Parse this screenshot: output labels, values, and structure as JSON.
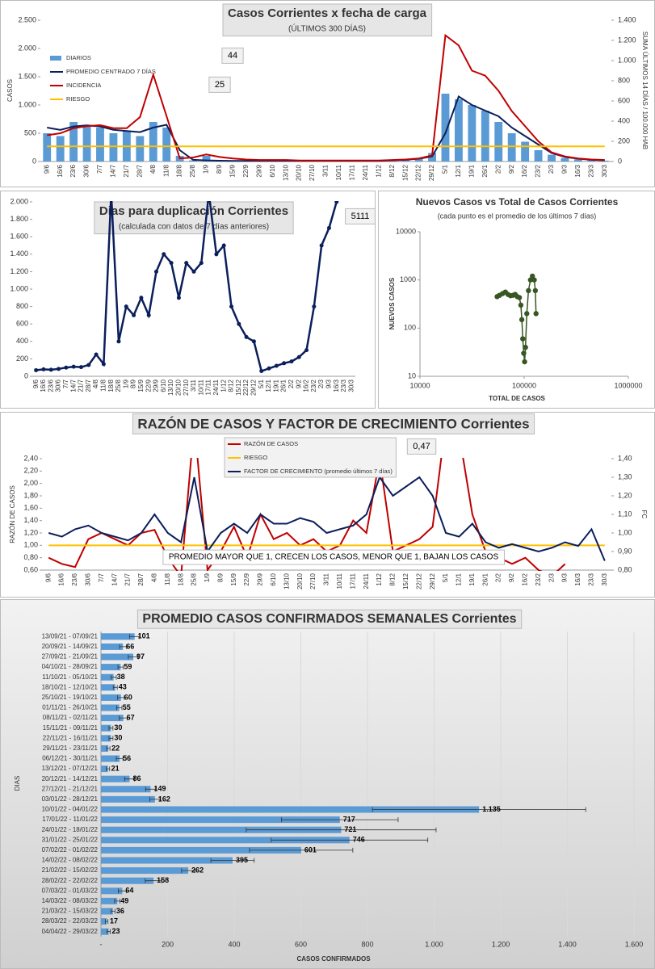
{
  "chart_data": [
    {
      "type": "combo",
      "title": "Casos Corrientes x fecha de carga",
      "subtitle": "(ÚLTIMOS 300 DÍAS)",
      "y_label": "CASOS",
      "y2_label": "SUMA ÚLTIMOS 14 DÍAS / 100.000 HAB",
      "annotations": [
        "44",
        "25"
      ],
      "categories": [
        "9/6",
        "16/6",
        "23/6",
        "30/6",
        "7/7",
        "14/7",
        "21/7",
        "28/7",
        "4/8",
        "11/8",
        "18/8",
        "25/8",
        "1/9",
        "8/9",
        "15/9",
        "22/9",
        "29/9",
        "6/10",
        "13/10",
        "20/10",
        "27/10",
        "3/11",
        "10/11",
        "17/11",
        "24/11",
        "1/12",
        "8/12",
        "15/12",
        "22/12",
        "29/12",
        "5/1",
        "12/1",
        "19/1",
        "26/1",
        "2/2",
        "9/2",
        "16/2",
        "23/2",
        "2/3",
        "9/3",
        "16/3",
        "23/3",
        "30/3"
      ],
      "ylim": [
        0,
        2500
      ],
      "yticks": [
        0,
        500,
        {
          "value": 1000,
          "label": "1.000"
        },
        {
          "value": 1500,
          "label": "1.500"
        },
        {
          "value": 2000,
          "label": "2.000"
        },
        {
          "value": 2500,
          "label": "2.500"
        }
      ],
      "y2lim": [
        0,
        1400
      ],
      "y2ticks": [
        0,
        200,
        400,
        600,
        800,
        {
          "value": 1000,
          "label": "1.000"
        },
        {
          "value": 1200,
          "label": "1.200"
        },
        {
          "value": 1400,
          "label": "1.400"
        }
      ],
      "series": [
        {
          "name": "DIARIOS",
          "type": "bar",
          "color": "#5b9bd5",
          "values": [
            500,
            450,
            700,
            650,
            600,
            500,
            550,
            450,
            700,
            600,
            100,
            20,
            100,
            15,
            10,
            10,
            15,
            8,
            10,
            8,
            10,
            10,
            10,
            12,
            10,
            15,
            20,
            30,
            60,
            150,
            1200,
            1100,
            1000,
            900,
            700,
            500,
            350,
            200,
            120,
            60,
            40,
            25,
            15
          ]
        },
        {
          "name": "PROMEDIO CENTRADO 7 DÍAS",
          "type": "line",
          "color": "#0b1f5c",
          "values": [
            600,
            560,
            620,
            640,
            620,
            560,
            540,
            520,
            600,
            650,
            200,
            30,
            20,
            15,
            10,
            10,
            10,
            10,
            10,
            10,
            10,
            10,
            10,
            10,
            10,
            10,
            20,
            30,
            50,
            90,
            500,
            1150,
            1000,
            900,
            800,
            600,
            450,
            300,
            150,
            80,
            50,
            30,
            20
          ]
        },
        {
          "name": "INCIDENCIA",
          "type": "line",
          "axis": "y2",
          "color": "#c00000",
          "values": [
            260,
            280,
            330,
            350,
            360,
            330,
            330,
            440,
            860,
            450,
            30,
            40,
            70,
            45,
            30,
            20,
            15,
            15,
            15,
            10,
            10,
            10,
            10,
            10,
            10,
            10,
            15,
            20,
            30,
            60,
            1250,
            1150,
            900,
            850,
            700,
            500,
            350,
            200,
            90,
            50,
            30,
            20,
            15
          ]
        },
        {
          "name": "RIESGO",
          "type": "line",
          "axis": "y2",
          "color": "#ffc000",
          "values": [
            150,
            150,
            150,
            150,
            150,
            150,
            150,
            150,
            150,
            150,
            150,
            150,
            150,
            150,
            150,
            150,
            150,
            150,
            150,
            150,
            150,
            150,
            150,
            150,
            150,
            150,
            150,
            150,
            150,
            150,
            150,
            150,
            150,
            150,
            150,
            150,
            150,
            150,
            150,
            150,
            150,
            150,
            150
          ]
        }
      ]
    },
    {
      "type": "line",
      "title": "Dias para duplicación Corrientes",
      "subtitle": "(calculada con datos de 7 días anteriores)",
      "annotations": [
        "5111"
      ],
      "categories": [
        "9/6",
        "16/6",
        "23/6",
        "30/6",
        "7/7",
        "14/7",
        "21/7",
        "28/7",
        "4/8",
        "11/8",
        "18/8",
        "25/8",
        "1/9",
        "8/9",
        "15/9",
        "22/9",
        "29/9",
        "6/10",
        "13/10",
        "20/10",
        "27/10",
        "3/11",
        "10/11",
        "17/11",
        "24/11",
        "1/12",
        "8/12",
        "15/12",
        "22/12",
        "29/12",
        "5/1",
        "12/1",
        "19/1",
        "26/1",
        "2/2",
        "9/2",
        "16/2",
        "23/2",
        "2/3",
        "9/3",
        "16/3",
        "23/3",
        "30/3"
      ],
      "ylim": [
        0,
        2000
      ],
      "yticks": [
        0,
        200,
        400,
        600,
        800,
        {
          "value": 1000,
          "label": "1.000"
        },
        {
          "value": 1200,
          "label": "1.200"
        },
        {
          "value": 1400,
          "label": "1.400"
        },
        {
          "value": 1600,
          "label": "1.600"
        },
        {
          "value": 1800,
          "label": "1.800"
        },
        {
          "value": 2000,
          "label": "2.000"
        }
      ],
      "series": [
        {
          "color": "#0b1f5c",
          "values": [
            70,
            80,
            75,
            85,
            100,
            110,
            105,
            130,
            250,
            140,
            2100,
            400,
            800,
            700,
            900,
            700,
            1200,
            1400,
            1300,
            900,
            1300,
            1200,
            1300,
            2100,
            1400,
            1500,
            800,
            600,
            450,
            400,
            60,
            90,
            120,
            150,
            170,
            220,
            300,
            800,
            1500,
            1700,
            2000,
            null,
            null
          ]
        }
      ]
    },
    {
      "type": "scatter",
      "title": "Nuevos Casos vs Total de Casos Corrientes",
      "subtitle": "(cada punto es el promedio de los últimos 7 días)",
      "x_label": "TOTAL DE CASOS",
      "y_label": "NUEVOS CASOS",
      "log_x": true,
      "log_y": true,
      "color": "#375623",
      "xlim": [
        10000,
        1000000
      ],
      "xticks": [
        10000,
        100000,
        1000000
      ],
      "ylim": [
        10,
        10000
      ],
      "yticks": [
        10,
        100,
        1000,
        10000
      ],
      "x": [
        55000,
        58000,
        62000,
        66000,
        70000,
        74000,
        78000,
        82000,
        86000,
        90000,
        93000,
        95000,
        97000,
        99000,
        101000,
        103000,
        106000,
        110000,
        115000,
        120000,
        125000,
        128000,
        130000
      ],
      "y": [
        450,
        480,
        520,
        560,
        500,
        470,
        480,
        500,
        450,
        430,
        300,
        150,
        60,
        30,
        20,
        40,
        200,
        600,
        1000,
        1200,
        1000,
        600,
        200
      ]
    },
    {
      "type": "line",
      "title": "RAZÓN DE CASOS Y FACTOR DE CRECIMIENTO Corrientes",
      "y_label": "RAZÓN DE CASOS",
      "y2_label": "FC",
      "annotations": [
        "0,47",
        "PROMEDIO MAYOR QUE 1, CRECEN LOS CASOS, MENOR QUE 1, BAJAN LOS CASOS"
      ],
      "categories": [
        "9/6",
        "16/6",
        "23/6",
        "30/6",
        "7/7",
        "14/7",
        "21/7",
        "28/7",
        "4/8",
        "11/8",
        "18/8",
        "25/8",
        "1/9",
        "8/9",
        "15/9",
        "22/9",
        "29/9",
        "6/10",
        "13/10",
        "20/10",
        "27/10",
        "3/11",
        "10/11",
        "17/11",
        "24/11",
        "1/12",
        "8/12",
        "15/12",
        "22/12",
        "29/12",
        "5/1",
        "12/1",
        "19/1",
        "26/1",
        "2/2",
        "9/2",
        "16/2",
        "23/2",
        "2/3",
        "9/3",
        "16/3",
        "23/3",
        "30/3"
      ],
      "ylim": [
        0.6,
        2.4
      ],
      "yticks": [
        {
          "value": 0.6,
          "label": "0,60"
        },
        {
          "value": 0.8,
          "label": "0,80"
        },
        {
          "value": 1,
          "label": "1,00"
        },
        {
          "value": 1.2,
          "label": "1,20"
        },
        {
          "value": 1.4,
          "label": "1,40"
        },
        {
          "value": 1.6,
          "label": "1,60"
        },
        {
          "value": 1.8,
          "label": "1,80"
        },
        {
          "value": 2,
          "label": "2,00"
        },
        {
          "value": 2.2,
          "label": "2,20"
        },
        {
          "value": 2.4,
          "label": "2,40"
        }
      ],
      "y2lim": [
        0.8,
        1.4
      ],
      "y2ticks": [
        {
          "value": 0.8,
          "label": "0,80"
        },
        {
          "value": 0.9,
          "label": "0,90"
        },
        {
          "value": 1,
          "label": "1,00"
        },
        {
          "value": 1.1,
          "label": "1,10"
        },
        {
          "value": 1.2,
          "label": "1,20"
        },
        {
          "value": 1.3,
          "label": "1,30"
        },
        {
          "value": 1.4,
          "label": "1,40"
        }
      ],
      "series": [
        {
          "name": "RAZÓN DE CASOS",
          "color": "#c00000",
          "values": [
            0.8,
            0.7,
            0.65,
            1.1,
            1.2,
            1.1,
            1.0,
            1.2,
            1.25,
            0.8,
            0.5,
            3.0,
            0.6,
            0.9,
            1.3,
            0.8,
            1.5,
            1.1,
            1.2,
            1.0,
            1.1,
            0.9,
            1.0,
            1.4,
            1.2,
            2.4,
            0.9,
            1.0,
            1.1,
            1.3,
            3.0,
            2.8,
            1.5,
            0.9,
            0.8,
            0.7,
            0.8,
            0.6,
            0.5,
            0.7,
            null,
            null,
            null
          ]
        },
        {
          "name": "RIESGO",
          "color": "#ffc000",
          "values": [
            1,
            1,
            1,
            1,
            1,
            1,
            1,
            1,
            1,
            1,
            1,
            1,
            1,
            1,
            1,
            1,
            1,
            1,
            1,
            1,
            1,
            1,
            1,
            1,
            1,
            1,
            1,
            1,
            1,
            1,
            1,
            1,
            1,
            1,
            1,
            1,
            1,
            1,
            1,
            1,
            1,
            1,
            1
          ]
        },
        {
          "name": "FACTOR DE CRECIMIENTO (promedio últimos 7 días)",
          "axis": "y2",
          "color": "#0b1f5c",
          "values": [
            1.0,
            0.98,
            1.02,
            1.04,
            1.0,
            0.98,
            0.96,
            1.0,
            1.1,
            1.0,
            0.95,
            1.3,
            0.9,
            1.0,
            1.05,
            1.0,
            1.1,
            1.05,
            1.05,
            1.08,
            1.06,
            1.0,
            1.02,
            1.04,
            1.1,
            1.3,
            1.2,
            1.25,
            1.3,
            1.2,
            1.0,
            0.98,
            1.05,
            0.95,
            0.92,
            0.94,
            0.92,
            0.9,
            0.92,
            0.95,
            0.93,
            1.02,
            0.85
          ]
        }
      ]
    },
    {
      "type": "bar",
      "orientation": "horizontal",
      "title": "PROMEDIO CASOS CONFIRMADOS SEMANALES Corrientes",
      "x_label": "CASOS CONFIRMADOS",
      "y_label": "DIAS",
      "color": "#5b9bd5",
      "grid": true,
      "categories": [
        "13/09/21 - 07/09/21",
        "20/09/21 - 14/09/21",
        "27/09/21 - 21/09/21",
        "04/10/21 - 28/09/21",
        "11/10/21 - 05/10/21",
        "18/10/21 - 12/10/21",
        "25/10/21 - 19/10/21",
        "01/11/21 - 26/10/21",
        "08/11/21 - 02/11/21",
        "15/11/21 - 09/11/21",
        "22/11/21 - 16/11/21",
        "29/11/21 - 23/11/21",
        "06/12/21 - 30/11/21",
        "13/12/21 - 07/12/21",
        "20/12/21 - 14/12/21",
        "27/12/21 - 21/12/21",
        "03/01/22 - 28/12/21",
        "10/01/22 - 04/01/22",
        "17/01/22 - 11/01/22",
        "24/01/22 - 18/01/22",
        "31/01/22 - 25/01/22",
        "07/02/22 - 01/02/22",
        "14/02/22 - 08/02/22",
        "21/02/22 - 15/02/22",
        "28/02/22 - 22/02/22",
        "07/03/22 - 01/03/22",
        "14/03/22 - 08/03/22",
        "21/03/22 - 15/03/22",
        "28/03/22 - 22/03/22",
        "04/04/22 - 29/03/22"
      ],
      "values": [
        101,
        66,
        97,
        59,
        38,
        43,
        60,
        55,
        67,
        30,
        30,
        22,
        56,
        21,
        86,
        149,
        162,
        1135,
        717,
        721,
        746,
        601,
        395,
        262,
        158,
        64,
        49,
        36,
        17,
        23
      ],
      "value_labels": [
        "101",
        "66",
        "97",
        "59",
        "38",
        "43",
        "60",
        "55",
        "67",
        "30",
        "30",
        "22",
        "56",
        "21",
        "86",
        "149",
        "162",
        "1.135",
        "717",
        "721",
        "746",
        "601",
        "395",
        "262",
        "158",
        "64",
        "49",
        "36",
        "17",
        "23"
      ],
      "errors": [
        15,
        10,
        15,
        8,
        8,
        6,
        10,
        8,
        12,
        6,
        6,
        5,
        10,
        5,
        15,
        15,
        15,
        320,
        175,
        285,
        235,
        155,
        65,
        20,
        25,
        12,
        8,
        6,
        4,
        5
      ],
      "xlim": [
        0,
        1600
      ],
      "xticks": [
        {
          "value": 0,
          "label": "-"
        },
        200,
        400,
        600,
        800,
        {
          "value": 1000,
          "label": "1.000"
        },
        {
          "value": 1200,
          "label": "1.200"
        },
        {
          "value": 1400,
          "label": "1.400"
        },
        {
          "value": 1600,
          "label": "1.600"
        }
      ]
    }
  ]
}
